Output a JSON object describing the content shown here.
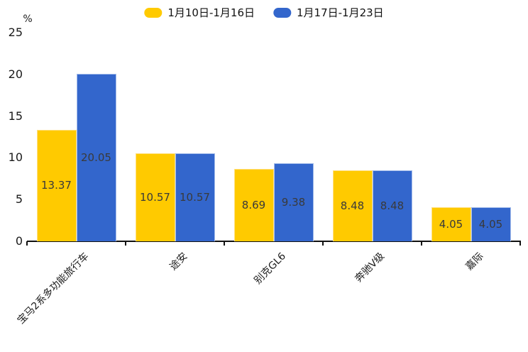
{
  "chart_data": {
    "type": "bar",
    "title": "",
    "xlabel": "",
    "ylabel": "%",
    "categories": [
      "宝马2系多功能旅行车",
      "途安",
      "别克GL6",
      "奔驰V级",
      "嘉际"
    ],
    "series": [
      {
        "name": "1月10日-1月16日",
        "color": "#FFCA00",
        "border_color": "#FFE083",
        "values": [
          13.37,
          10.57,
          8.69,
          8.48,
          4.05
        ]
      },
      {
        "name": "1月17日-1月23日",
        "color": "#3366CC",
        "border_color": "#A5BDEA",
        "values": [
          20.05,
          10.57,
          9.38,
          8.48,
          4.05
        ]
      }
    ],
    "value_label_decimals": 2,
    "y_ticks": [
      0,
      5,
      10,
      15,
      20,
      25
    ],
    "ylim": [
      0,
      25
    ],
    "grid": false,
    "legend_position": "top",
    "axis_color": "#111111",
    "value_label_color": "#3a3a3a"
  }
}
